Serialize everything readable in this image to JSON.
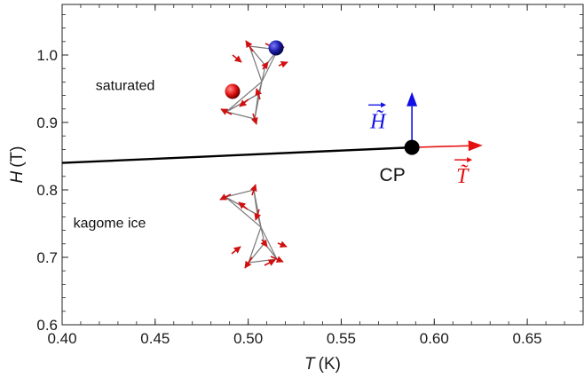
{
  "chart_data": {
    "type": "line",
    "xlabel_var": "T",
    "xlabel_unit": "(K)",
    "ylabel_var": "H",
    "ylabel_unit": "(T)",
    "xlim": [
      0.4,
      0.68
    ],
    "ylim": [
      0.6,
      1.075
    ],
    "xticks": [
      0.4,
      0.45,
      0.5,
      0.55,
      0.6,
      0.65
    ],
    "xtick_labels": [
      "0.40",
      "0.45",
      "0.50",
      "0.55",
      "0.60",
      "0.65"
    ],
    "yticks": [
      0.6,
      0.7,
      0.8,
      0.9,
      1.0
    ],
    "ytick_labels": [
      "0.6",
      "0.7",
      "0.8",
      "0.9",
      "1.0"
    ],
    "grid": false,
    "series": [
      {
        "x": [
          0.4,
          0.588
        ],
        "y": [
          0.84,
          0.863
        ],
        "color": "#000000"
      }
    ],
    "critical_point": {
      "label": "CP",
      "x": 0.588,
      "y": 0.863,
      "color": "#000000"
    },
    "region_labels": [
      {
        "text": "saturated",
        "x": 0.418,
        "y": 0.948
      },
      {
        "text": "kagome ice",
        "x": 0.406,
        "y": 0.744
      }
    ],
    "vectors": [
      {
        "label": "H̃",
        "color": "#1010e6",
        "dx": 0.0,
        "dy": 0.082
      },
      {
        "label": "T̃",
        "color": "#e61010",
        "dx": 0.038,
        "dy": 0.003
      }
    ],
    "colors": {
      "spin": "#d01010",
      "frame": "#7a7a7a",
      "blue_site": "#1a1aa6",
      "red_site": "#e01010"
    }
  }
}
